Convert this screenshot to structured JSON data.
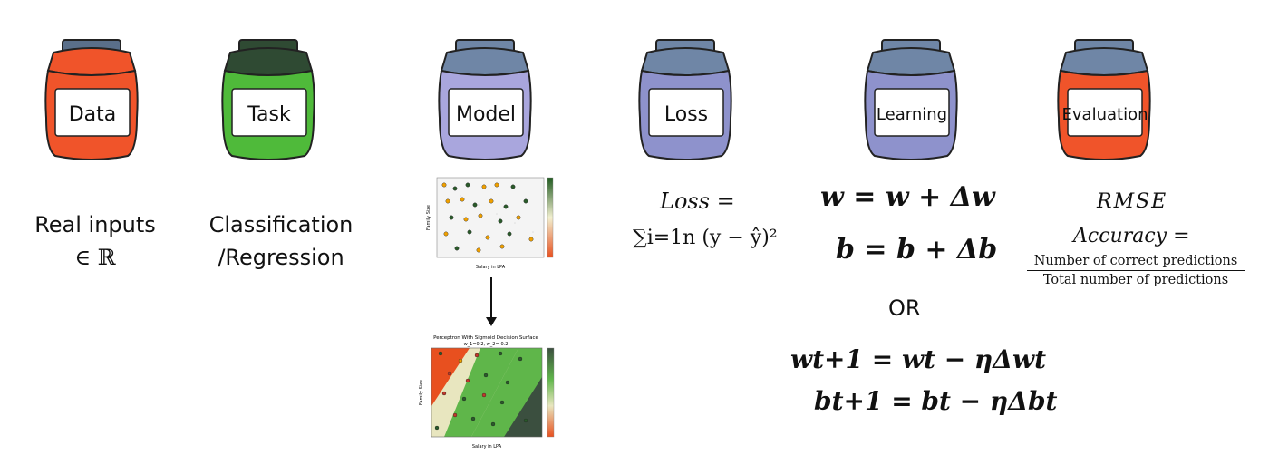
{
  "jars": [
    {
      "label": "Data",
      "lid_color": "#5a6f8a",
      "body_color": "#f0542a"
    },
    {
      "label": "Task",
      "lid_color": "#2f4a33",
      "body_color": "#4fba3a"
    },
    {
      "label": "Model",
      "lid_color": "#6f86a6",
      "body_color": "#a9a6dd"
    },
    {
      "label": "Loss",
      "lid_color": "#6f86a6",
      "body_color": "#8e92cc"
    },
    {
      "label": "Learning",
      "lid_color": "#6f86a6",
      "body_color": "#8e92cc"
    },
    {
      "label": "Evaluation",
      "lid_color": "#6f86a6",
      "body_color": "#f0542a"
    }
  ],
  "data": {
    "line1": "Real inputs",
    "line2": "∈ ℝ"
  },
  "task": {
    "line1": "Classification",
    "line2": "/Regression"
  },
  "loss": {
    "line1": "Loss =",
    "line2": "∑i=1n (y − ŷ)²"
  },
  "learning": {
    "eq1": "w = w + Δw",
    "eq2": "b = b + Δb",
    "or": "OR",
    "eq3": "wt+1 = wt − ηΔwt",
    "eq4": "bt+1 = bt − ηΔbt"
  },
  "evaluation": {
    "rmse": "RMSE",
    "accuracy": "Accuracy =",
    "numerator": "Number of correct predictions",
    "denominator": "Total number of predictions"
  },
  "plots": {
    "scatter": {
      "xlabel": "Salary in LPA",
      "ylabel": "Family Size"
    },
    "surface": {
      "title": "Perceptron With Sigmoid Decision Surface",
      "subtitle": "w_1=0.2, w_2=-0.2",
      "xlabel": "Salary in LPA",
      "ylabel": "Family Size"
    }
  }
}
